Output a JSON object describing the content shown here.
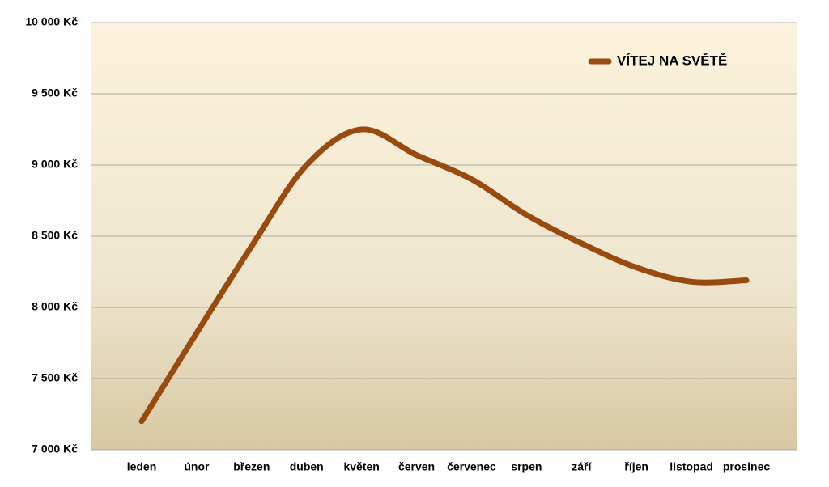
{
  "chart_data": {
    "type": "line",
    "smooth": true,
    "categories": [
      "leden",
      "únor",
      "březen",
      "duben",
      "květen",
      "červen",
      "červenec",
      "srpen",
      "září",
      "říjen",
      "listopad",
      "prosinec"
    ],
    "series": [
      {
        "name": "VÍTEJ NA SVĚTĚ",
        "color": "#994a0e",
        "values": [
          7200,
          7820,
          8430,
          9000,
          9250,
          9070,
          8900,
          8650,
          8450,
          8280,
          8180,
          8190
        ]
      }
    ],
    "ylim": [
      7000,
      10000
    ],
    "yticks": [
      {
        "value": 7000,
        "label": "7 000 Kč"
      },
      {
        "value": 7500,
        "label": "7 500 Kč"
      },
      {
        "value": 8000,
        "label": "8 000 Kč"
      },
      {
        "value": 8500,
        "label": "8 500 Kč"
      },
      {
        "value": 9000,
        "label": "9 000 Kč"
      },
      {
        "value": 9500,
        "label": "9 500 Kč"
      },
      {
        "value": 10000,
        "label": "10 000 Kč"
      }
    ],
    "grid": true,
    "legend": "top-right"
  }
}
